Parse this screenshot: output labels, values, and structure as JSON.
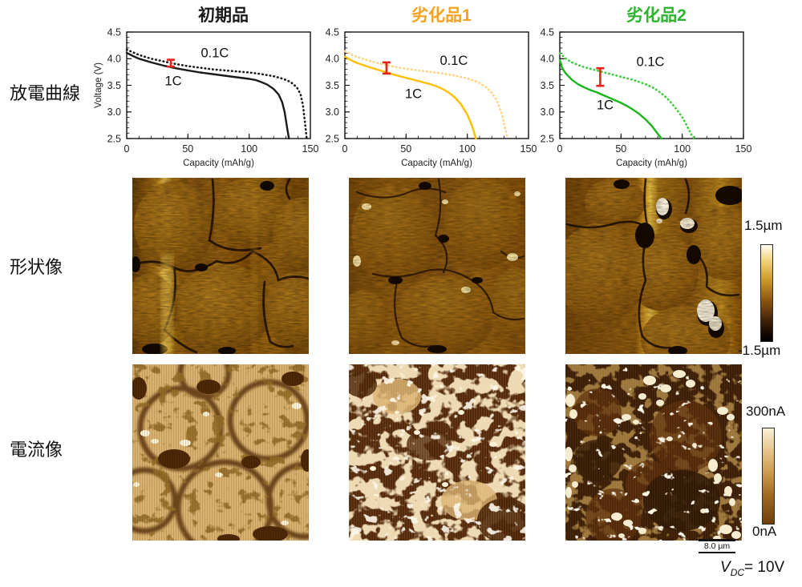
{
  "row_labels": {
    "discharge": "放電曲線",
    "topography": "形状像",
    "current": "電流像"
  },
  "chart_data": [
    {
      "type": "line",
      "title": "初期品",
      "title_color": "#1a1a1a",
      "xlabel": "Capacity (mAh/g)",
      "ylabel": "Voltage (V)",
      "xlim": [
        0,
        150
      ],
      "ylim": [
        2.5,
        4.5
      ],
      "xticks": [
        0,
        50,
        100,
        150
      ],
      "yticks": [
        2.5,
        3.0,
        3.5,
        4.0,
        4.5
      ],
      "xminor": 10,
      "yminor": 0.1,
      "grid": false,
      "series": [
        {
          "name": "1C",
          "style": "solid",
          "color": "#1a1a1a",
          "x": [
            0,
            5,
            10,
            20,
            30,
            40,
            50,
            60,
            70,
            80,
            90,
            100,
            105,
            110,
            115,
            120,
            124,
            127,
            129,
            131,
            132.5
          ],
          "y": [
            4.11,
            4.05,
            4.0,
            3.93,
            3.87,
            3.82,
            3.78,
            3.74,
            3.71,
            3.68,
            3.65,
            3.62,
            3.6,
            3.56,
            3.51,
            3.43,
            3.33,
            3.18,
            3.0,
            2.7,
            2.5
          ]
        },
        {
          "name": "0.1C",
          "style": "dotted",
          "color": "#1a1a1a",
          "x": [
            0,
            10,
            20,
            30,
            40,
            50,
            60,
            70,
            80,
            90,
            100,
            110,
            120,
            128,
            134,
            139,
            142,
            144,
            145.5,
            147
          ],
          "y": [
            4.17,
            4.07,
            4.0,
            3.95,
            3.9,
            3.86,
            3.83,
            3.8,
            3.78,
            3.76,
            3.74,
            3.71,
            3.67,
            3.62,
            3.56,
            3.46,
            3.33,
            3.12,
            2.82,
            2.5
          ]
        }
      ],
      "error_bar": {
        "x": 36,
        "y_low": 3.85,
        "y_high": 3.98,
        "color": "#e8211a"
      },
      "annotations": [
        {
          "text": "0.1C",
          "x": 72,
          "y": 4.03
        },
        {
          "text": "1C",
          "x": 38,
          "y": 3.5
        }
      ]
    },
    {
      "type": "line",
      "title": "劣化品1",
      "title_color": "#f6a21e",
      "xlabel": "Capacity (mAh/g)",
      "ylabel": "",
      "xlim": [
        0,
        150
      ],
      "ylim": [
        2.5,
        4.5
      ],
      "xticks": [
        0,
        50,
        100,
        150
      ],
      "yticks": [
        2.5,
        3.0,
        3.5,
        4.0,
        4.5
      ],
      "xminor": 10,
      "yminor": 0.1,
      "grid": false,
      "series": [
        {
          "name": "1C",
          "style": "solid",
          "color": "#ffbf00",
          "x": [
            0,
            5,
            10,
            20,
            30,
            40,
            50,
            60,
            70,
            75,
            80,
            85,
            90,
            95,
            100,
            104,
            107
          ],
          "y": [
            4.04,
            3.97,
            3.92,
            3.84,
            3.77,
            3.7,
            3.64,
            3.58,
            3.52,
            3.48,
            3.43,
            3.36,
            3.27,
            3.14,
            2.95,
            2.73,
            2.5
          ]
        },
        {
          "name": "0.1C",
          "style": "dotted",
          "color": "#ffd27f",
          "x": [
            0,
            10,
            20,
            30,
            40,
            50,
            60,
            70,
            80,
            90,
            100,
            105,
            110,
            115,
            120,
            124,
            128,
            131,
            133
          ],
          "y": [
            4.14,
            4.03,
            3.96,
            3.9,
            3.85,
            3.81,
            3.78,
            3.75,
            3.72,
            3.68,
            3.63,
            3.59,
            3.54,
            3.47,
            3.36,
            3.22,
            2.98,
            2.68,
            2.5
          ]
        }
      ],
      "error_bar": {
        "x": 34,
        "y_low": 3.72,
        "y_high": 3.93,
        "color": "#e8211a"
      },
      "annotations": [
        {
          "text": "0.1C",
          "x": 89,
          "y": 3.88
        },
        {
          "text": "1C",
          "x": 56,
          "y": 3.26
        }
      ]
    },
    {
      "type": "line",
      "title": "劣化品2",
      "title_color": "#2cb42c",
      "xlabel": "Capacity (mAh/g)",
      "ylabel": "",
      "xlim": [
        0,
        150
      ],
      "ylim": [
        2.5,
        4.5
      ],
      "xticks": [
        0,
        50,
        100,
        150
      ],
      "yticks": [
        2.5,
        3.0,
        3.5,
        4.0,
        4.5
      ],
      "xminor": 10,
      "yminor": 0.1,
      "grid": false,
      "series": [
        {
          "name": "1C",
          "style": "solid",
          "color": "#17b517",
          "x": [
            0,
            2,
            5,
            10,
            15,
            20,
            25,
            30,
            35,
            40,
            45,
            50,
            55,
            60,
            65,
            70,
            75,
            79,
            83
          ],
          "y": [
            3.97,
            3.82,
            3.72,
            3.6,
            3.52,
            3.46,
            3.41,
            3.37,
            3.32,
            3.27,
            3.22,
            3.17,
            3.11,
            3.04,
            2.96,
            2.86,
            2.74,
            2.62,
            2.5
          ]
        },
        {
          "name": "0.1C",
          "style": "dotted",
          "color": "#3ecb3e",
          "x": [
            0,
            5,
            10,
            15,
            20,
            30,
            40,
            50,
            60,
            70,
            75,
            80,
            85,
            90,
            95,
            100,
            104,
            108,
            110
          ],
          "y": [
            4.1,
            4.0,
            3.93,
            3.88,
            3.84,
            3.78,
            3.72,
            3.66,
            3.6,
            3.52,
            3.47,
            3.4,
            3.31,
            3.2,
            3.06,
            2.9,
            2.73,
            2.55,
            2.5
          ]
        }
      ],
      "error_bar": {
        "x": 33,
        "y_low": 3.49,
        "y_high": 3.82,
        "color": "#e8211a"
      },
      "annotations": [
        {
          "text": "0.1C",
          "x": 74,
          "y": 3.86
        },
        {
          "text": "1C",
          "x": 37,
          "y": 3.05
        }
      ]
    }
  ],
  "colorbars": {
    "height": {
      "top": "1.5µm",
      "bottom": "-1.5µm"
    },
    "current": {
      "top": "300nA",
      "bottom": "0nA"
    }
  },
  "scale_bar": {
    "label": "8.0 µm"
  },
  "bias_label": {
    "symbol": "V",
    "subscript": "DC",
    "value": "= 10V"
  }
}
